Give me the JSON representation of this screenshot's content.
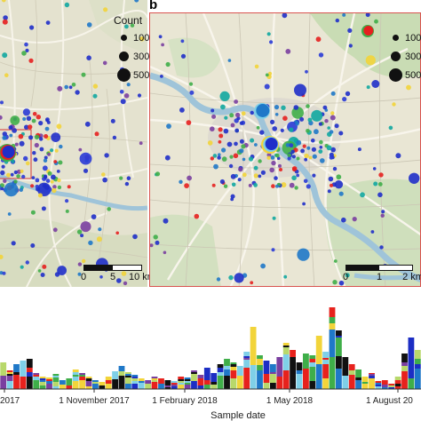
{
  "panels": {
    "a": {
      "letter": ""
    },
    "b": {
      "letter": "b"
    }
  },
  "legend": {
    "title": "Count",
    "entries_a": [
      "100",
      "300",
      "500"
    ],
    "entries_b": [
      "100-",
      "300",
      "500"
    ]
  },
  "scalebars": {
    "a": {
      "labels": [
        "0",
        "5",
        "10 km"
      ]
    },
    "b": {
      "labels": [
        "0",
        "1",
        "2 km"
      ]
    }
  },
  "colors": {
    "river": "#9fc4d9",
    "road_major": "#f6f2e6",
    "panel_b_border": "#d9534f",
    "dot_blue": "#1f2fc9",
    "dot_red": "#e5201f"
  },
  "chart_data": {
    "type": "bar",
    "stacked": true,
    "xlabel": "Sample date",
    "x_tick_labels": [
      "2017",
      "1 November 2017",
      "1 February 2018",
      "1 May 2018",
      "1 August 20"
    ],
    "series_colors": [
      "#1c2ec4",
      "#1f78c8",
      "#3fae49",
      "#b8d86b",
      "#f2d43a",
      "#7a3fa0",
      "#e7221d",
      "#111111",
      "#7fd0e8"
    ]
  }
}
